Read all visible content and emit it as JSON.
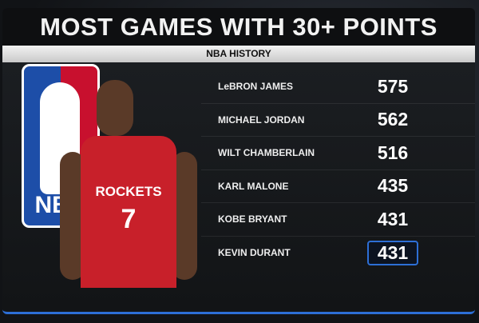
{
  "title": "MOST GAMES WITH 30+ POINTS",
  "subtitle": "NBA HISTORY",
  "logo_text": "NBA",
  "jersey": {
    "team": "ROCKETS",
    "number": "7"
  },
  "highlight_color": "#2d6fd6",
  "rows": [
    {
      "name": "LeBRON JAMES",
      "value": "575"
    },
    {
      "name": "MICHAEL JORDAN",
      "value": "562"
    },
    {
      "name": "WILT CHAMBERLAIN",
      "value": "516"
    },
    {
      "name": "KARL MALONE",
      "value": "435"
    },
    {
      "name": "KOBE BRYANT",
      "value": "431"
    },
    {
      "name": "KEVIN DURANT",
      "value": "431",
      "highlighted": true
    }
  ]
}
